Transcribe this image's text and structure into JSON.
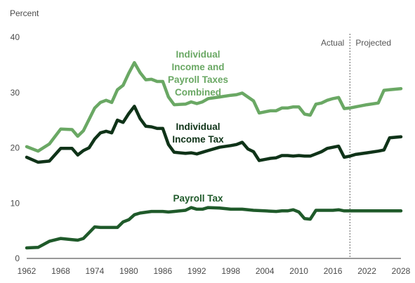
{
  "chart_data": {
    "type": "line",
    "ylabel": "Percent",
    "ylim": [
      0,
      40
    ],
    "yticks": [
      0,
      10,
      20,
      30,
      40
    ],
    "xlim": [
      1962,
      2028
    ],
    "xticks": [
      1962,
      1968,
      1974,
      1980,
      1986,
      1992,
      1998,
      2004,
      2010,
      2016,
      2022,
      2028
    ],
    "grid": false,
    "divider_year": 2019,
    "regions": {
      "actual": "Actual",
      "projected": "Projected"
    },
    "colors": {
      "combined": "#6aa864",
      "income": "#0f3318",
      "payroll": "#1f5a2a"
    },
    "series": [
      {
        "name": "Individual Income and Payroll Taxes Combined",
        "label_lines": [
          "Individual",
          "Income and",
          "Payroll Taxes",
          "Combined"
        ],
        "x": [
          1962,
          1964,
          1966,
          1968,
          1970,
          1971,
          1972,
          1974,
          1975,
          1976,
          1977,
          1978,
          1979,
          1980,
          1981,
          1982,
          1983,
          1984,
          1985,
          1986,
          1987,
          1988,
          1990,
          1991,
          1992,
          1993,
          1994,
          1996,
          1998,
          1999,
          2000,
          2001,
          2002,
          2003,
          2005,
          2006,
          2007,
          2008,
          2009,
          2010,
          2011,
          2012,
          2013,
          2014,
          2015,
          2016,
          2017,
          2018,
          2019,
          2020,
          2022,
          2024,
          2025,
          2026,
          2028
        ],
        "values": [
          20.2,
          19.4,
          20.7,
          23.4,
          23.3,
          22.1,
          23.1,
          27.2,
          28.2,
          28.6,
          28.2,
          30.5,
          31.3,
          33.5,
          35.4,
          33.6,
          32.3,
          32.4,
          32.0,
          32.0,
          29.2,
          27.8,
          27.9,
          28.3,
          28.0,
          28.3,
          28.9,
          29.2,
          29.5,
          29.6,
          29.9,
          29.2,
          28.5,
          26.3,
          26.7,
          26.7,
          27.2,
          27.2,
          27.4,
          27.4,
          26.1,
          25.9,
          27.9,
          28.1,
          28.6,
          28.9,
          29.1,
          27.1,
          27.2,
          27.4,
          27.8,
          28.1,
          30.4,
          30.5,
          30.7
        ]
      },
      {
        "name": "Individual Income Tax",
        "label_lines": [
          "Individual",
          "Income Tax"
        ],
        "x": [
          1962,
          1964,
          1966,
          1968,
          1970,
          1971,
          1972,
          1973,
          1974,
          1975,
          1976,
          1977,
          1978,
          1979,
          1980,
          1981,
          1982,
          1983,
          1984,
          1985,
          1986,
          1987,
          1988,
          1990,
          1991,
          1992,
          1993,
          1994,
          1996,
          1998,
          1999,
          2000,
          2001,
          2002,
          2003,
          2005,
          2006,
          2007,
          2008,
          2009,
          2010,
          2011,
          2012,
          2013,
          2014,
          2015,
          2016,
          2017,
          2018,
          2019,
          2020,
          2022,
          2024,
          2025,
          2026,
          2028
        ],
        "values": [
          18.3,
          17.4,
          17.6,
          19.9,
          19.9,
          18.7,
          19.5,
          20.0,
          21.6,
          22.7,
          23.0,
          22.7,
          25.0,
          24.6,
          26.2,
          27.5,
          25.3,
          23.9,
          23.8,
          23.5,
          23.5,
          20.6,
          19.2,
          19.0,
          19.1,
          18.9,
          19.2,
          19.5,
          20.1,
          20.4,
          20.6,
          21.0,
          19.8,
          19.3,
          17.7,
          18.1,
          18.2,
          18.6,
          18.6,
          18.5,
          18.6,
          18.5,
          18.5,
          18.9,
          19.3,
          19.9,
          20.1,
          20.3,
          18.3,
          18.5,
          18.8,
          19.1,
          19.4,
          19.6,
          21.8,
          22.0
        ]
      },
      {
        "name": "Payroll Tax",
        "label_lines": [
          "Payroll Tax"
        ],
        "x": [
          1962,
          1964,
          1966,
          1968,
          1970,
          1971,
          1972,
          1974,
          1975,
          1978,
          1979,
          1980,
          1981,
          1982,
          1984,
          1986,
          1987,
          1988,
          1990,
          1991,
          1992,
          1993,
          1994,
          1996,
          1998,
          2000,
          2002,
          2004,
          2006,
          2007,
          2008,
          2009,
          2010,
          2011,
          2012,
          2013,
          2016,
          2017,
          2018,
          2019,
          2022,
          2028
        ],
        "values": [
          1.9,
          2.0,
          3.1,
          3.6,
          3.4,
          3.3,
          3.6,
          5.7,
          5.6,
          5.6,
          6.6,
          7.0,
          7.9,
          8.2,
          8.5,
          8.5,
          8.4,
          8.5,
          8.7,
          9.2,
          8.9,
          8.9,
          9.2,
          9.1,
          8.9,
          8.9,
          8.7,
          8.6,
          8.5,
          8.6,
          8.6,
          8.8,
          8.4,
          7.2,
          7.1,
          8.7,
          8.7,
          8.8,
          8.6,
          8.6,
          8.6,
          8.6
        ]
      }
    ]
  }
}
